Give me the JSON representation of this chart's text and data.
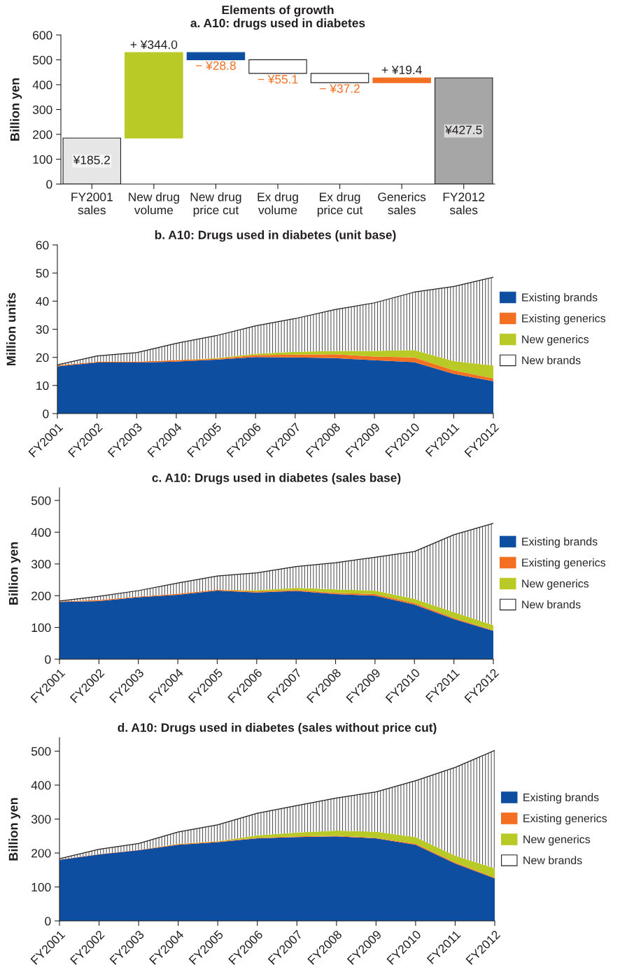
{
  "chart_data": [
    {
      "type": "bar",
      "title": "Elements of growth",
      "subtitle": "a. A10: drugs used in diabetes",
      "ylabel": "Billion yen",
      "categories": [
        "FY2001\nsales",
        "New drug\nvolume",
        "New drug\nprice cut",
        "Ex drug\nvolume",
        "Ex drug\nprice cut",
        "Generics\nsales",
        "FY2012\nsales"
      ],
      "values": [
        185.2,
        344.0,
        -28.8,
        -55.1,
        -37.2,
        19.4,
        427.5
      ],
      "base": [
        0,
        185.2,
        529.2,
        500.4,
        445.3,
        408.1,
        0
      ],
      "colors": [
        "#e6e6e6",
        "#b9c925",
        "#0d4ea0",
        "#ffffff",
        "#ffffff",
        "#f36f21",
        "#a6a6a6"
      ],
      "value_labels": [
        "¥185.2",
        "+ ¥344.0",
        "− ¥28.8",
        "− ¥55.1",
        "− ¥37.2",
        "+ ¥19.4",
        "¥427.5"
      ],
      "ylim": [
        0,
        600
      ],
      "yticks": [
        0,
        100,
        200,
        300,
        400,
        500,
        600
      ],
      "grid": false
    },
    {
      "type": "area",
      "stacked": true,
      "title": "b. A10: Drugs used in diabetes (unit base)",
      "ylabel": "Million units",
      "categories": [
        "FY2001",
        "FY2002",
        "FY2003",
        "FY2004",
        "FY2005",
        "FY2006",
        "FY2007",
        "FY2008",
        "FY2009",
        "FY2010",
        "FY2011",
        "FY2012"
      ],
      "series": [
        {
          "name": "Existing brands",
          "color": "#0d4ea0",
          "values": [
            16.8,
            18.2,
            18.2,
            18.5,
            19.2,
            20.1,
            20.0,
            19.7,
            19.0,
            18.3,
            14.1,
            11.5
          ]
        },
        {
          "name": "Existing generics",
          "color": "#f36f21",
          "values": [
            0.4,
            0.2,
            0.3,
            0.5,
            0.3,
            0.7,
            1.0,
            1.4,
            1.3,
            1.7,
            1.3,
            1.0
          ]
        },
        {
          "name": "New generics",
          "color": "#b9c925",
          "values": [
            0,
            0,
            0,
            0,
            0.2,
            0.5,
            1.0,
            1.2,
            2.0,
            2.6,
            3.3,
            4.6
          ]
        },
        {
          "name": "New brands",
          "color": "#ffffff",
          "values": [
            0.1,
            2.1,
            3.2,
            6.0,
            8.0,
            9.9,
            11.8,
            14.7,
            17.1,
            20.6,
            26.5,
            31.4
          ]
        }
      ],
      "ylim": [
        0,
        60
      ],
      "yticks": [
        0,
        10,
        20,
        30,
        40,
        50,
        60
      ],
      "grid": false,
      "legend": "right"
    },
    {
      "type": "area",
      "stacked": true,
      "title": "c. A10: Drugs used in diabetes (sales base)",
      "ylabel": "Billion yen",
      "categories": [
        "FY2001",
        "FY2002",
        "FY2003",
        "FY2004",
        "FY2005",
        "FY2006",
        "FY2007",
        "FY2008",
        "FY2009",
        "FY2010",
        "FY2011",
        "FY2012"
      ],
      "series": [
        {
          "name": "Existing brands",
          "color": "#0d4ea0",
          "values": [
            180,
            183,
            195,
            203,
            216,
            210,
            215,
            205,
            200,
            172,
            126,
            89
          ]
        },
        {
          "name": "Existing generics",
          "color": "#f36f21",
          "values": [
            2,
            3,
            2,
            3,
            3,
            3,
            3,
            4,
            5,
            5,
            4,
            2
          ]
        },
        {
          "name": "New generics",
          "color": "#b9c925",
          "values": [
            0,
            0,
            0,
            0,
            0,
            4,
            7,
            11,
            11,
            13,
            18,
            16
          ]
        },
        {
          "name": "New brands",
          "color": "#ffffff",
          "values": [
            1,
            12,
            19,
            34,
            43,
            55,
            67,
            84,
            105,
            149,
            244,
            321
          ]
        }
      ],
      "ylim": [
        0,
        540
      ],
      "yticks": [
        0,
        100,
        200,
        300,
        400,
        500
      ],
      "grid": false,
      "legend": "right"
    },
    {
      "type": "area",
      "stacked": true,
      "title": "d. A10: Drugs used in diabetes (sales without price cut)",
      "ylabel": "Billion yen",
      "categories": [
        "FY2001",
        "FY2002",
        "FY2003",
        "FY2004",
        "FY2005",
        "FY2006",
        "FY2007",
        "FY2008",
        "FY2009",
        "FY2010",
        "FY2011",
        "FY2012"
      ],
      "series": [
        {
          "name": "Existing brands",
          "color": "#0d4ea0",
          "values": [
            180,
            196,
            208,
            224,
            232,
            243,
            247,
            249,
            243,
            224,
            169,
            125
          ]
        },
        {
          "name": "Existing generics",
          "color": "#f36f21",
          "values": [
            1,
            1,
            1,
            2,
            2,
            2,
            2,
            2,
            2,
            3,
            3,
            3
          ]
        },
        {
          "name": "New generics",
          "color": "#b9c925",
          "values": [
            0,
            0,
            0,
            1,
            1,
            7,
            11,
            15,
            18,
            20,
            20,
            27
          ]
        },
        {
          "name": "New brands",
          "color": "#ffffff",
          "values": [
            2,
            14,
            19,
            35,
            48,
            65,
            80,
            96,
            117,
            166,
            260,
            347
          ]
        }
      ],
      "ylim": [
        0,
        540
      ],
      "yticks": [
        0,
        100,
        200,
        300,
        400,
        500
      ],
      "grid": false,
      "legend": "right"
    }
  ]
}
